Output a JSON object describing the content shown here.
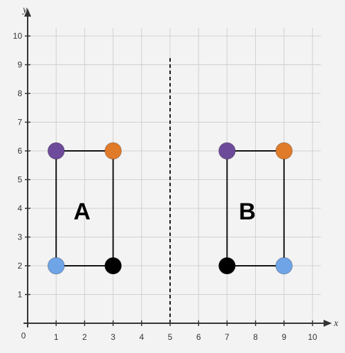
{
  "axes": {
    "x_label": "x",
    "y_label": "y",
    "x_range": [
      0,
      10
    ],
    "y_range": [
      0,
      10
    ],
    "x_ticks": [
      "1",
      "2",
      "3",
      "4",
      "5",
      "6",
      "7",
      "8",
      "9",
      "10"
    ],
    "y_ticks": [
      "1",
      "2",
      "3",
      "4",
      "5",
      "6",
      "7",
      "8",
      "9",
      "10"
    ],
    "origin_label": "0",
    "grid": true
  },
  "mirror_line": {
    "x": 5,
    "style": "dashed"
  },
  "colors": {
    "purple": "#6e4b9a",
    "orange": "#e07b2a",
    "blue": "#6fa4e6",
    "black": "#000000",
    "grid": "#d0d0d0",
    "axis": "#333333"
  },
  "shapes": [
    {
      "label": "A",
      "label_position": [
        2.2,
        3.9
      ],
      "vertices": [
        {
          "x": 1,
          "y": 6,
          "color": "purple"
        },
        {
          "x": 3,
          "y": 6,
          "color": "orange"
        },
        {
          "x": 3,
          "y": 2,
          "color": "black"
        },
        {
          "x": 1,
          "y": 2,
          "color": "blue"
        }
      ]
    },
    {
      "label": "B",
      "label_position": [
        8,
        3.9
      ],
      "vertices": [
        {
          "x": 7,
          "y": 6,
          "color": "purple"
        },
        {
          "x": 9,
          "y": 6,
          "color": "orange"
        },
        {
          "x": 9,
          "y": 2,
          "color": "blue"
        },
        {
          "x": 7,
          "y": 2,
          "color": "black"
        }
      ]
    }
  ]
}
